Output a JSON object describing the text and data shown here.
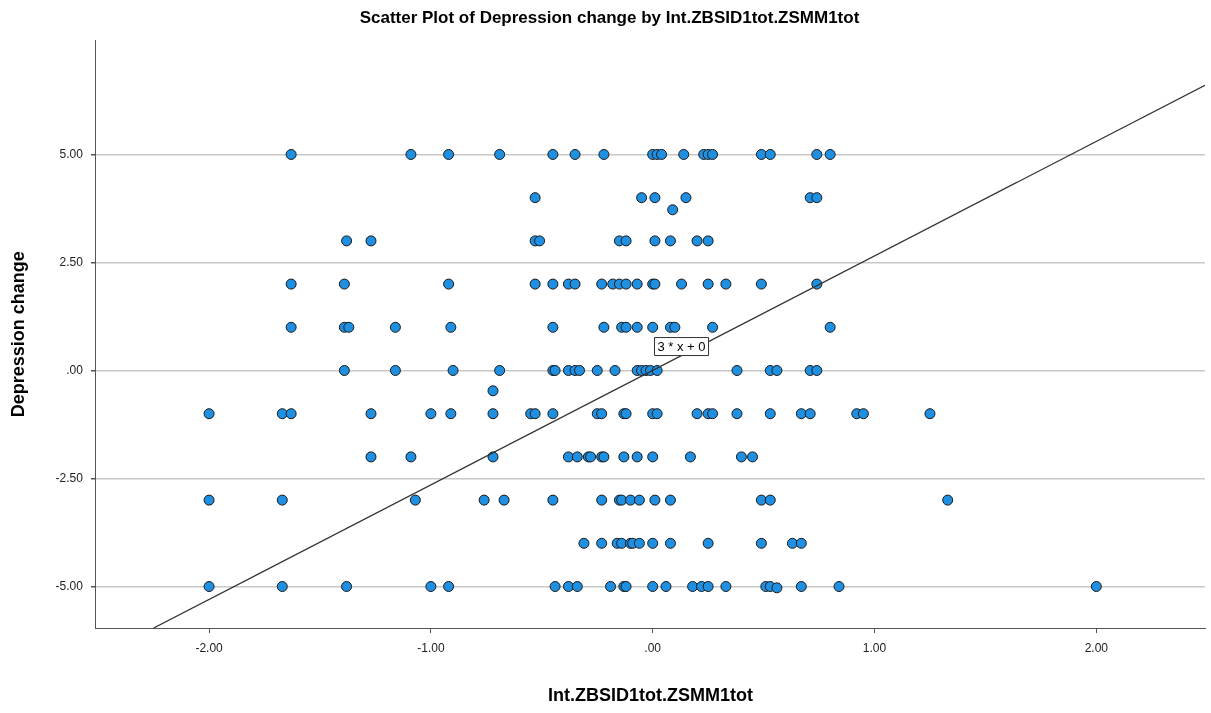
{
  "chart_data": {
    "type": "scatter",
    "title": "Scatter Plot of Depression change by Int.ZBSID1tot.ZSMM1tot",
    "xlabel": "Int.ZBSID1tot.ZSMM1tot",
    "ylabel": "Depression change",
    "xlim": [
      -2.51,
      2.49
    ],
    "ylim": [
      -5.96,
      7.64
    ],
    "xticks": [
      {
        "value": -2,
        "label": "-2.00"
      },
      {
        "value": -1,
        "label": "-1.00"
      },
      {
        "value": 0,
        "label": ".00"
      },
      {
        "value": 1,
        "label": "1.00"
      },
      {
        "value": 2,
        "label": "2.00"
      }
    ],
    "yticks": [
      {
        "value": -5,
        "label": "-5.00"
      },
      {
        "value": -2.5,
        "label": "-2.50"
      },
      {
        "value": 0,
        "label": ".00"
      },
      {
        "value": 2.5,
        "label": "2.50"
      },
      {
        "value": 5,
        "label": "5.00"
      }
    ],
    "grid": "y",
    "annotations": [
      "3 * x + 0"
    ],
    "series": [
      {
        "marker": "circle",
        "color": "#1e8fe1",
        "x": [
          -1.63,
          -1.09,
          -0.92,
          -0.69,
          -0.45,
          -0.35,
          -0.22,
          0.0,
          0.02,
          0.04,
          0.14,
          0.23,
          0.25,
          0.27,
          0.49,
          0.53,
          0.74,
          0.8,
          -0.53,
          -0.05,
          0.01,
          0.15,
          0.71,
          0.74,
          0.09,
          -1.38,
          -1.27,
          -0.53,
          -0.51,
          -0.15,
          -0.12,
          0.01,
          0.08,
          0.2,
          0.25,
          -1.63,
          -1.39,
          -0.92,
          -0.53,
          -0.45,
          -0.38,
          -0.35,
          -0.23,
          -0.18,
          -0.15,
          -0.12,
          -0.07,
          0.0,
          0.01,
          0.13,
          0.25,
          0.33,
          0.49,
          0.74,
          -1.63,
          -1.39,
          -1.37,
          -1.16,
          -0.91,
          -0.45,
          -0.22,
          -0.14,
          -0.12,
          -0.07,
          0.0,
          0.08,
          0.1,
          0.27,
          0.8,
          -1.39,
          -1.16,
          -0.9,
          -0.69,
          -0.45,
          -0.44,
          -0.38,
          -0.35,
          -0.33,
          -0.25,
          -0.17,
          -0.07,
          -0.05,
          -0.03,
          -0.01,
          0.02,
          0.38,
          0.53,
          0.56,
          0.71,
          0.74,
          -0.72,
          -2.0,
          -1.67,
          -1.63,
          -1.27,
          -1.0,
          -0.91,
          -0.72,
          -0.55,
          -0.53,
          -0.45,
          -0.25,
          -0.23,
          -0.13,
          -0.12,
          0.0,
          0.02,
          0.2,
          0.25,
          0.27,
          0.38,
          0.53,
          0.67,
          0.71,
          0.92,
          0.95,
          1.25,
          -1.27,
          -1.09,
          -0.72,
          -0.38,
          -0.34,
          -0.29,
          -0.28,
          -0.23,
          -0.22,
          -0.13,
          -0.07,
          0.0,
          0.17,
          0.4,
          0.45,
          -2.0,
          -1.67,
          -1.07,
          -0.76,
          -0.67,
          -0.45,
          -0.23,
          -0.15,
          -0.14,
          -0.1,
          -0.06,
          0.01,
          0.08,
          0.49,
          0.53,
          1.33,
          -0.31,
          -0.23,
          -0.16,
          -0.14,
          -0.1,
          -0.09,
          -0.06,
          0.0,
          0.08,
          0.25,
          0.49,
          0.63,
          0.67,
          -2.0,
          -1.67,
          -1.38,
          -1.0,
          -0.92,
          -0.44,
          -0.38,
          -0.34,
          -0.19,
          -0.13,
          -0.12,
          0.0,
          0.06,
          0.18,
          0.22,
          0.25,
          0.33,
          0.51,
          0.53,
          0.56,
          0.67,
          0.84,
          2.0
        ],
        "values": [
          5,
          5,
          5,
          5,
          5,
          5,
          5,
          5,
          5,
          5,
          5,
          5,
          5,
          5,
          5,
          5,
          5,
          5,
          4,
          4,
          4,
          4,
          4,
          4,
          3.72,
          3,
          3,
          3,
          3,
          3,
          3,
          3,
          3,
          3,
          3,
          2,
          2,
          2,
          2,
          2,
          2,
          2,
          2,
          2,
          2,
          2,
          2,
          2,
          2,
          2,
          2,
          2,
          2,
          2,
          1,
          1,
          1,
          1,
          1,
          1,
          1,
          1,
          1,
          1,
          1,
          1,
          1,
          1,
          1,
          0,
          0,
          0,
          0,
          0,
          0,
          0,
          0,
          0,
          0,
          0,
          0,
          0,
          0,
          0,
          0,
          0,
          0,
          0,
          0,
          0,
          -0.47,
          -1,
          -1,
          -1,
          -1,
          -1,
          -1,
          -1,
          -1,
          -1,
          -1,
          -1,
          -1,
          -1,
          -1,
          -1,
          -1,
          -1,
          -1,
          -1,
          -1,
          -1,
          -1,
          -1,
          -1,
          -1,
          -1,
          -2,
          -2,
          -2,
          -2,
          -2,
          -2,
          -2,
          -2,
          -2,
          -2,
          -2,
          -2,
          -2,
          -2,
          -2,
          -3,
          -3,
          -3,
          -3,
          -3,
          -3,
          -3,
          -3,
          -3,
          -3,
          -3,
          -3,
          -3,
          -3,
          -3,
          -3,
          -4,
          -4,
          -4,
          -4,
          -4,
          -4,
          -4,
          -4,
          -4,
          -4,
          -4,
          -4,
          -4,
          -5,
          -5,
          -5,
          -5,
          -5,
          -5,
          -5,
          -5,
          -5,
          -5,
          -5,
          -5,
          -5,
          -5,
          -5,
          -5,
          -5,
          -5,
          -5,
          -5.03,
          -5,
          -5,
          -5
        ]
      },
      {
        "type": "line",
        "color": "#333333",
        "x": [
          -2.25,
          2.49
        ],
        "values": [
          -5.96,
          6.6
        ]
      }
    ]
  }
}
